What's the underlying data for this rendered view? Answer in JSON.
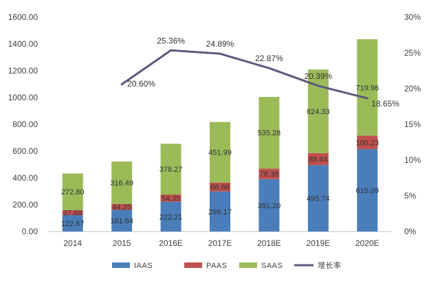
{
  "chart_data": {
    "type": "bar",
    "stacked": true,
    "categories": [
      "2014",
      "2015",
      "2016E",
      "2017E",
      "2018E",
      "2019E",
      "2020E"
    ],
    "series": [
      {
        "name": "IAAS",
        "color": "#4a7ebb",
        "values": [
          122.67,
          161.64,
          222.21,
          299.17,
          391.2,
          495.74,
          615.09
        ],
        "labels": [
          "122.67",
          "161.64",
          "222.21",
          "299.17",
          "391.20",
          "495.74",
          "615.09"
        ]
      },
      {
        "name": "PAAS",
        "color": "#c0504d",
        "values": [
          37.69,
          44.25,
          54.35,
          66.66,
          78.38,
          89.64,
          100.23
        ],
        "labels": [
          "37.69",
          "44.25",
          "54.35",
          "66.66",
          "78.38",
          "89.64",
          "100.23"
        ]
      },
      {
        "name": "SAAS",
        "color": "#9bbb59",
        "values": [
          272.8,
          316.49,
          378.27,
          451.99,
          535.28,
          624.33,
          719.96
        ],
        "labels": [
          "272.80",
          "316.49",
          "378.27",
          "451.99",
          "535.28",
          "624.33",
          "719.96"
        ]
      }
    ],
    "line_series": {
      "name": "增长率",
      "color": "#5a5a7a",
      "axis": "right",
      "values": [
        null,
        20.6,
        25.36,
        24.89,
        22.87,
        20.39,
        18.65
      ],
      "labels": [
        "",
        "20.60%",
        "25.36%",
        "24.89%",
        "22.87%",
        "20.39%",
        "18.65%"
      ]
    },
    "y_left": {
      "min": 0,
      "max": 1600,
      "step": 200,
      "ticks": [
        "0.00",
        "200.00",
        "400.00",
        "600.00",
        "800.00",
        "1000.00",
        "1200.00",
        "1400.00",
        "1600.00"
      ]
    },
    "y_right": {
      "min": 0,
      "max": 30,
      "step": 5,
      "ticks": [
        "0%",
        "5%",
        "10%",
        "15%",
        "20%",
        "25%",
        "30%"
      ]
    },
    "grid": false,
    "legend_position": "bottom",
    "title": "",
    "xlabel": "",
    "ylabel": ""
  }
}
